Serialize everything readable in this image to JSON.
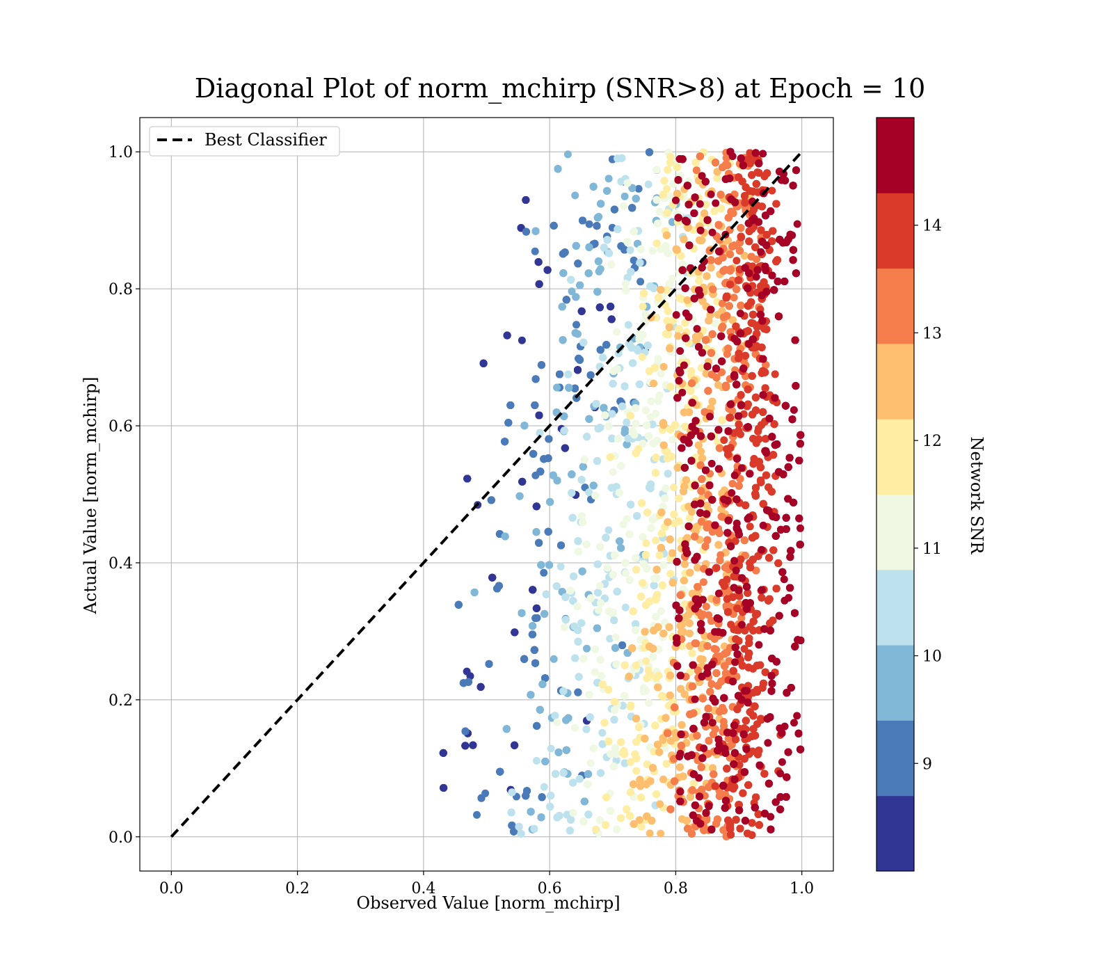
{
  "chart_data": {
    "type": "scatter",
    "title": "Diagonal Plot of norm_mchirp (SNR>8) at Epoch = 10",
    "xlabel": "Observed Value [norm_mchirp]",
    "ylabel": "Actual Value [norm_mchirp]",
    "xlim": [
      -0.05,
      1.05
    ],
    "ylim": [
      -0.05,
      1.05
    ],
    "xticks": [
      "0.0",
      "0.2",
      "0.4",
      "0.6",
      "0.8",
      "1.0"
    ],
    "yticks": [
      "0.0",
      "0.2",
      "0.4",
      "0.6",
      "0.8",
      "1.0"
    ],
    "grid": true,
    "legend": {
      "placement": "top-left",
      "entries": [
        {
          "label": "Best Classifier",
          "style": "dashed",
          "color": "#000000"
        }
      ]
    },
    "reference_line": {
      "name": "Best Classifier",
      "x": [
        0.0,
        1.0
      ],
      "y": [
        0.0,
        1.0
      ]
    },
    "colorbar": {
      "label": "Network SNR",
      "range": [
        8.0,
        15.0
      ],
      "ticks": [
        "9",
        "10",
        "11",
        "12",
        "13",
        "14"
      ],
      "bins": [
        {
          "from": 8.0,
          "to": 8.7,
          "color": "#313695"
        },
        {
          "from": 8.7,
          "to": 9.4,
          "color": "#4a7ab7"
        },
        {
          "from": 9.4,
          "to": 10.1,
          "color": "#80b6d6"
        },
        {
          "from": 10.1,
          "to": 10.8,
          "color": "#bde2ee"
        },
        {
          "from": 10.8,
          "to": 11.5,
          "color": "#eff8e2"
        },
        {
          "from": 11.5,
          "to": 12.2,
          "color": "#feeda2"
        },
        {
          "from": 12.2,
          "to": 12.9,
          "color": "#fdbf6f"
        },
        {
          "from": 12.9,
          "to": 13.6,
          "color": "#f57d4b"
        },
        {
          "from": 13.6,
          "to": 14.3,
          "color": "#d93a2a"
        },
        {
          "from": 14.3,
          "to": 15.0,
          "color": "#a50026"
        }
      ]
    },
    "points": {
      "count": 16000,
      "x_range": [
        0.39,
        1.0
      ],
      "y_range": [
        0.0,
        1.0
      ],
      "snr_range": [
        8.0,
        15.0
      ],
      "trend": "low SNR points spread to low observed values; high SNR points concentrate near observed 0.8-1.0"
    }
  }
}
